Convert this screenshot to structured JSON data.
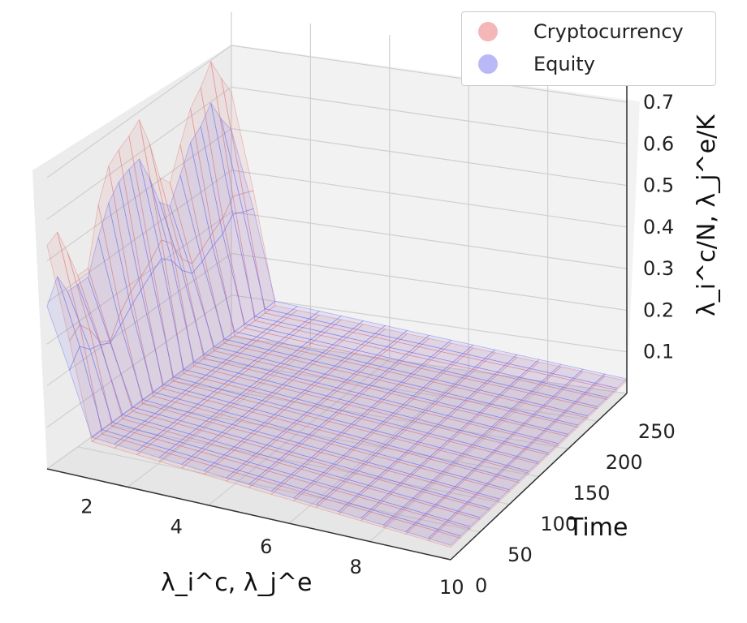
{
  "chart_data": {
    "type": "surface",
    "zlabel": "λ_i^c/N, λ_j^e/K",
    "xlabel": "λ_i^c, λ_j^e",
    "ylabel": "Time",
    "x_ticks": [
      "2",
      "4",
      "6",
      "8",
      "10"
    ],
    "y_ticks": [
      "0",
      "50",
      "100",
      "150",
      "200",
      "250"
    ],
    "z_ticks": [
      "0.1",
      "0.2",
      "0.3",
      "0.4",
      "0.5",
      "0.6",
      "0.7"
    ],
    "xlim": [
      1,
      10
    ],
    "ylim": [
      0,
      270
    ],
    "zlim": [
      0,
      0.78
    ],
    "series": [
      {
        "name": "Cryptocurrency",
        "color": "#e07878",
        "description_values": {
          "x": [
            1,
            2,
            3,
            4,
            5,
            6,
            7,
            8,
            9,
            10
          ],
          "time_points": [
            0,
            30,
            60,
            90,
            120,
            150,
            180,
            210,
            240,
            270
          ],
          "z_at_x1_by_time": [
            0.55,
            0.62,
            0.58,
            0.7,
            0.66,
            0.72,
            0.68,
            0.75,
            0.7,
            0.65
          ],
          "z_at_x2": 0.09,
          "z_tail": 0.03
        }
      },
      {
        "name": "Equity",
        "color": "#6b6bf0",
        "description_values": {
          "x": [
            1,
            2,
            3,
            4,
            5,
            6,
            7,
            8,
            9,
            10
          ],
          "time_points": [
            0,
            30,
            60,
            90,
            120,
            150,
            180,
            210,
            240,
            270
          ],
          "z_at_x1_by_time": [
            0.4,
            0.5,
            0.55,
            0.6,
            0.58,
            0.62,
            0.6,
            0.65,
            0.6,
            0.55
          ],
          "z_at_x2": 0.1,
          "z_tail": 0.035
        }
      }
    ],
    "legend_position": "top-right",
    "grid": true
  },
  "legend": {
    "items": [
      {
        "label": "Cryptocurrency",
        "color": "#f4b6b6"
      },
      {
        "label": "Equity",
        "color": "#b9b9f7"
      }
    ]
  }
}
